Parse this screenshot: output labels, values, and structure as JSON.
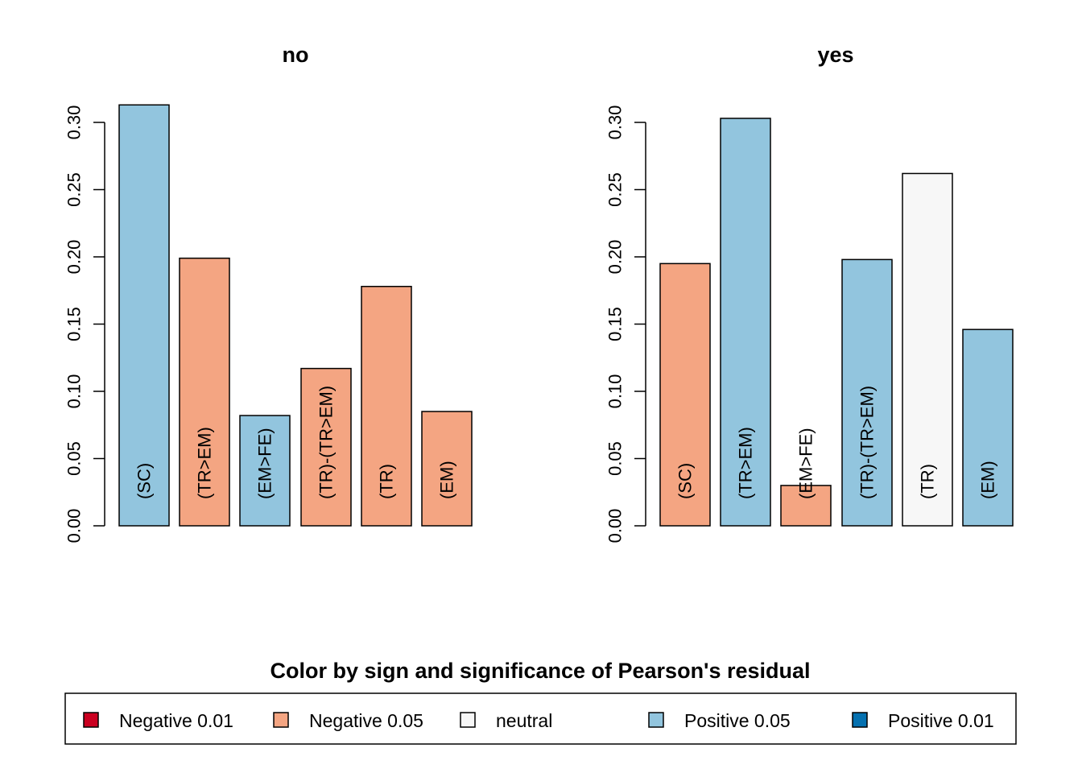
{
  "chart_data": {
    "type": "bar",
    "legend": {
      "title": "Color by sign and significance of Pearson's residual",
      "position": "bottom",
      "entries": [
        {
          "label": "Negative 0.01",
          "color": "#ca0020"
        },
        {
          "label": "Negative 0.05",
          "color": "#f4a582"
        },
        {
          "label": "neutral",
          "color": "#f7f7f7"
        },
        {
          "label": "Positive 0.05",
          "color": "#92c5de"
        },
        {
          "label": "Positive 0.01",
          "color": "#0571b0"
        }
      ]
    },
    "panels": [
      {
        "title": "no",
        "ylim": [
          0,
          0.3
        ],
        "yticks": [
          "0.00",
          "0.05",
          "0.10",
          "0.15",
          "0.20",
          "0.25",
          "0.30"
        ],
        "categories": [
          "(SC)",
          "(TR>EM)",
          "(EM>FE)",
          "(TR)-(TR>EM)",
          "(TR)",
          "(EM)"
        ],
        "values": [
          0.313,
          0.199,
          0.082,
          0.117,
          0.178,
          0.085
        ],
        "colors": [
          "#92c5de",
          "#f4a582",
          "#92c5de",
          "#f4a582",
          "#f4a582",
          "#f4a582"
        ]
      },
      {
        "title": "yes",
        "ylim": [
          0,
          0.3
        ],
        "yticks": [
          "0.00",
          "0.05",
          "0.10",
          "0.15",
          "0.20",
          "0.25",
          "0.30"
        ],
        "categories": [
          "(SC)",
          "(TR>EM)",
          "(EM>FE)",
          "(TR)-(TR>EM)",
          "(TR)",
          "(EM)"
        ],
        "values": [
          0.195,
          0.303,
          0.03,
          0.198,
          0.262,
          0.146
        ],
        "colors": [
          "#f4a582",
          "#92c5de",
          "#f4a582",
          "#92c5de",
          "#f7f7f7",
          "#92c5de"
        ]
      }
    ]
  }
}
